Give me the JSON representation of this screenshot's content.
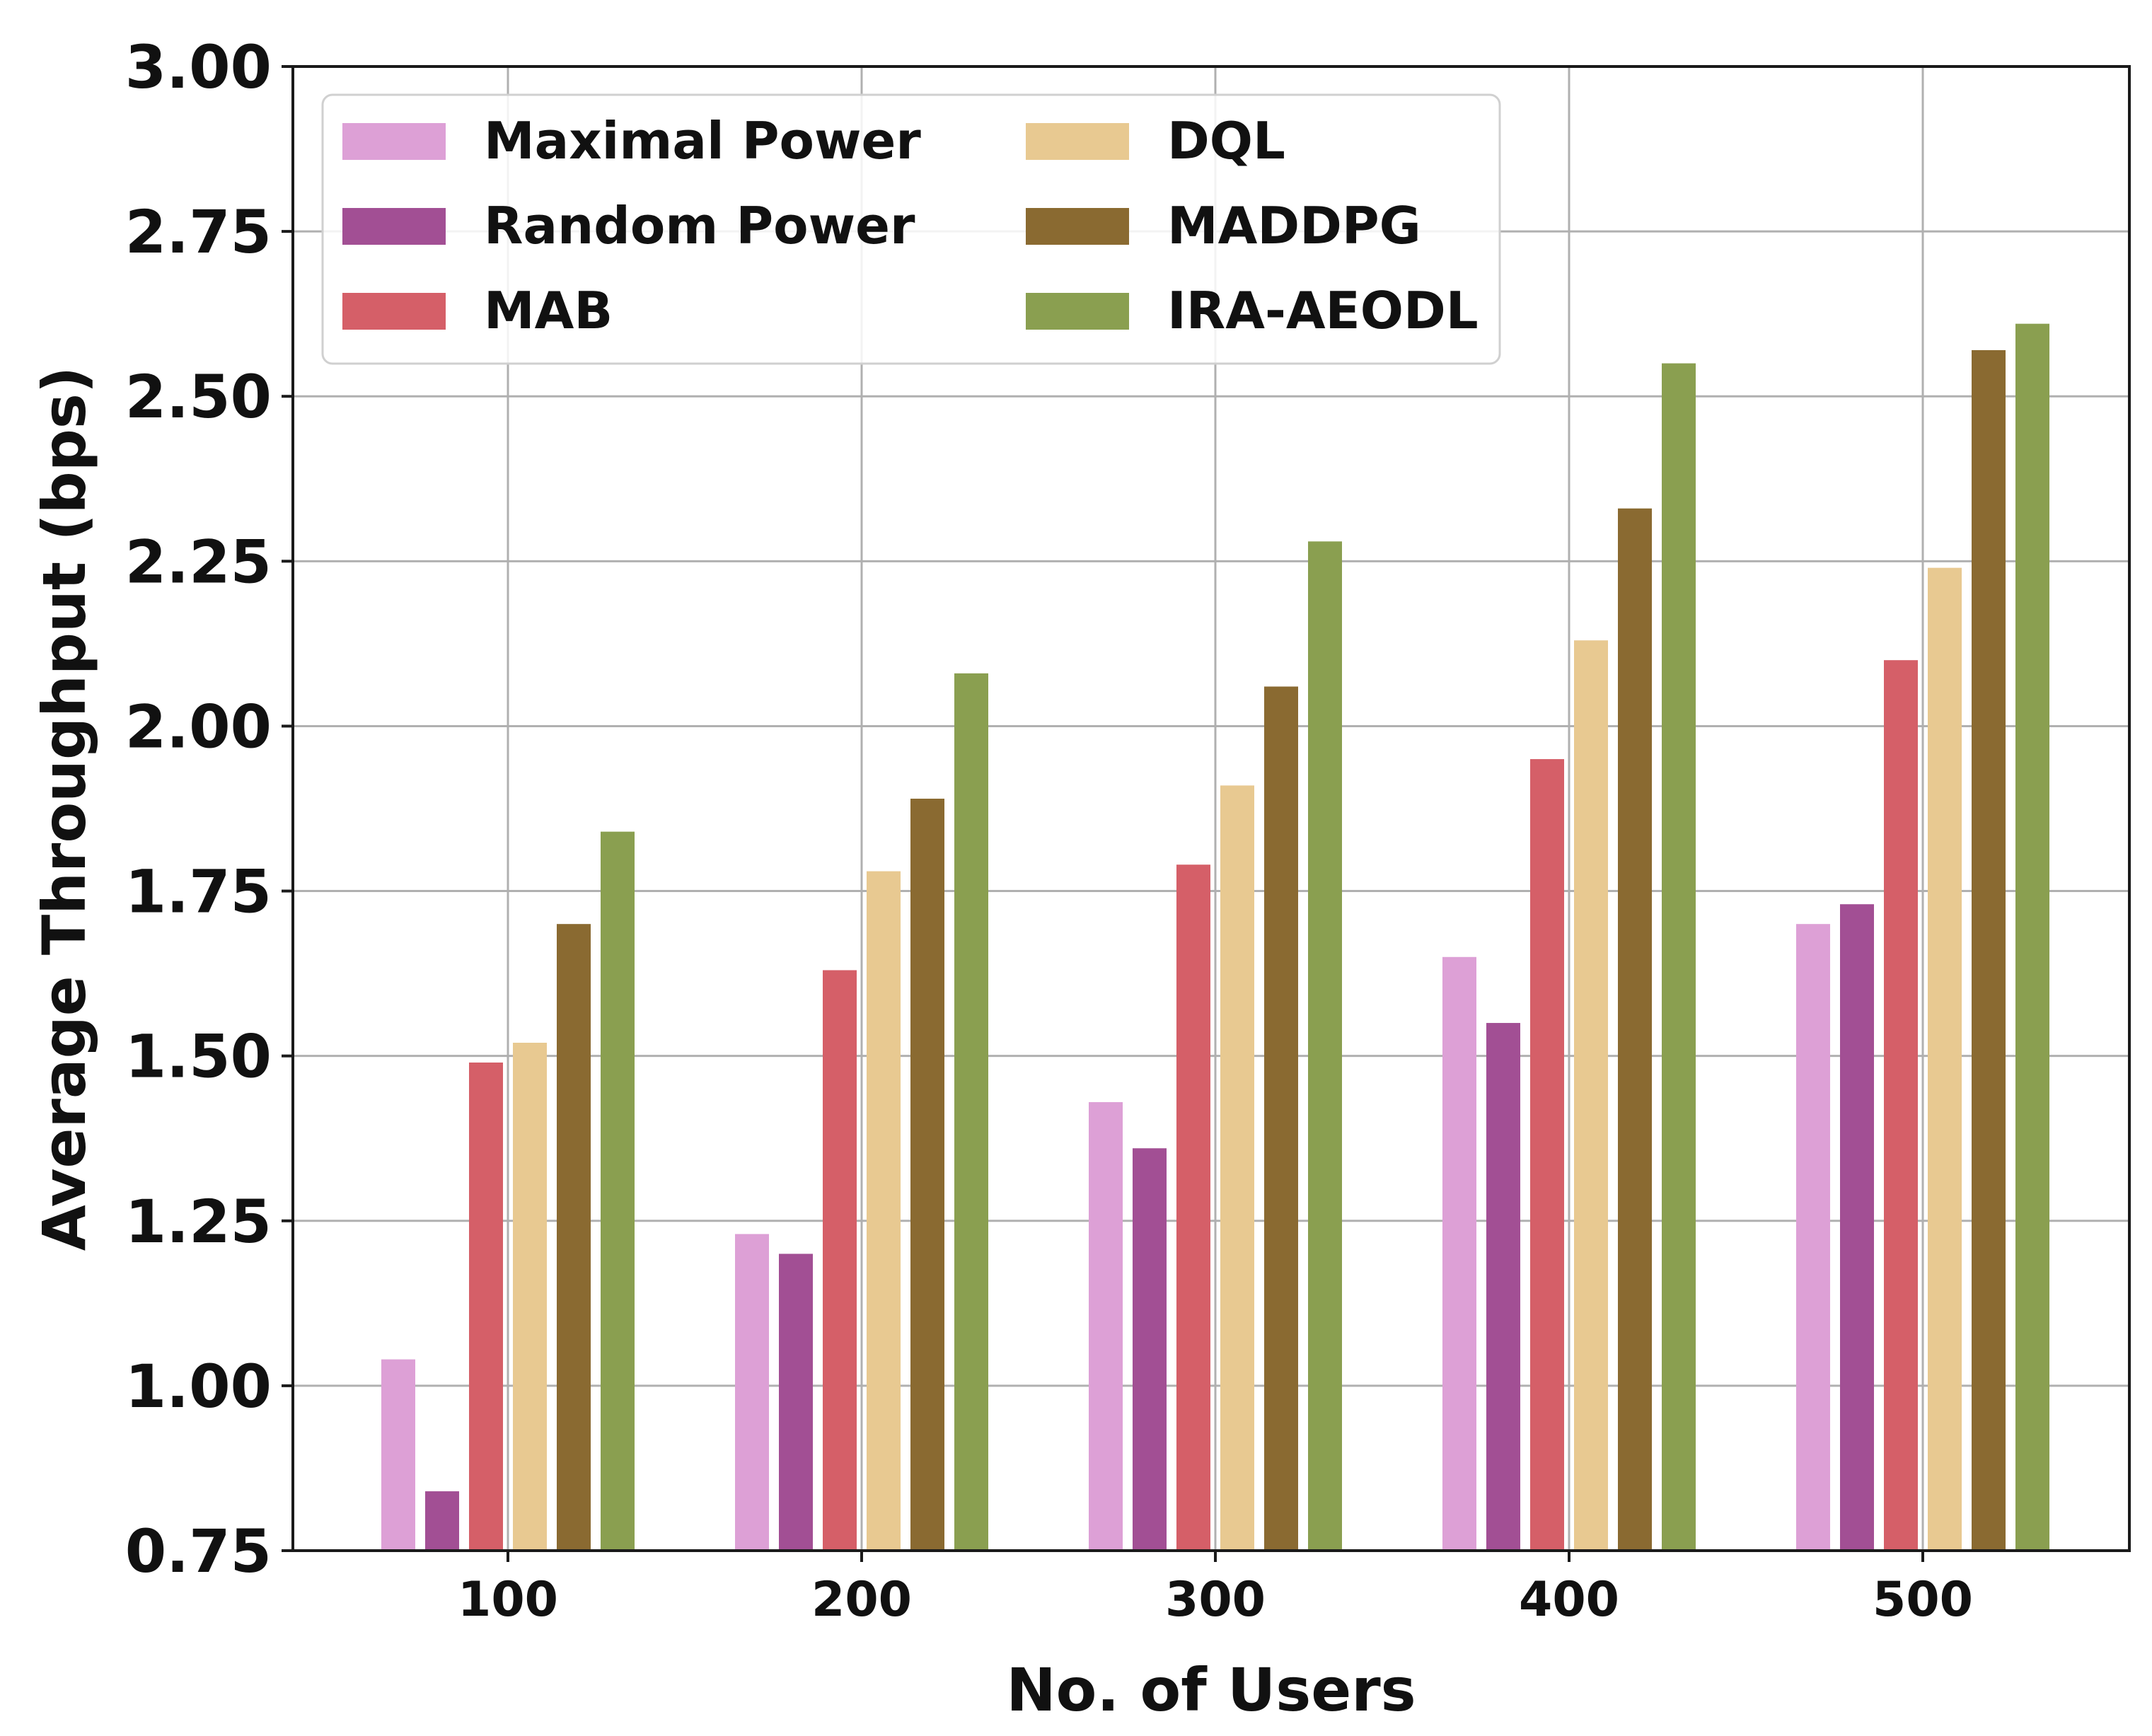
{
  "chart_data": {
    "type": "bar",
    "title": "",
    "xlabel": "No. of Users",
    "ylabel": "Average Throughput (bps)",
    "ylim": [
      0.75,
      3.0
    ],
    "yticks": [
      "0.75",
      "1.00",
      "1.25",
      "1.50",
      "1.75",
      "2.00",
      "2.25",
      "2.50",
      "2.75",
      "3.00"
    ],
    "categories": [
      "100",
      "200",
      "300",
      "400",
      "500"
    ],
    "grid": true,
    "legend_position": "top-left",
    "series": [
      {
        "name": "Maximal Power",
        "color": "#dda0d6",
        "values": [
          1.04,
          1.23,
          1.43,
          1.65,
          1.7
        ]
      },
      {
        "name": "Random Power",
        "color": "#a24f94",
        "values": [
          0.84,
          1.2,
          1.36,
          1.55,
          1.73
        ]
      },
      {
        "name": "MAB",
        "color": "#d55f68",
        "values": [
          1.49,
          1.63,
          1.79,
          1.95,
          2.1
        ]
      },
      {
        "name": "DQL",
        "color": "#e8c991",
        "values": [
          1.52,
          1.78,
          1.91,
          2.13,
          2.24
        ]
      },
      {
        "name": "MADDPG",
        "color": "#8a6a31",
        "values": [
          1.7,
          1.89,
          2.06,
          2.33,
          2.57
        ]
      },
      {
        "name": "IRA-AEODL",
        "color": "#8a9f50",
        "values": [
          1.84,
          2.08,
          2.28,
          2.55,
          2.61
        ]
      }
    ]
  }
}
